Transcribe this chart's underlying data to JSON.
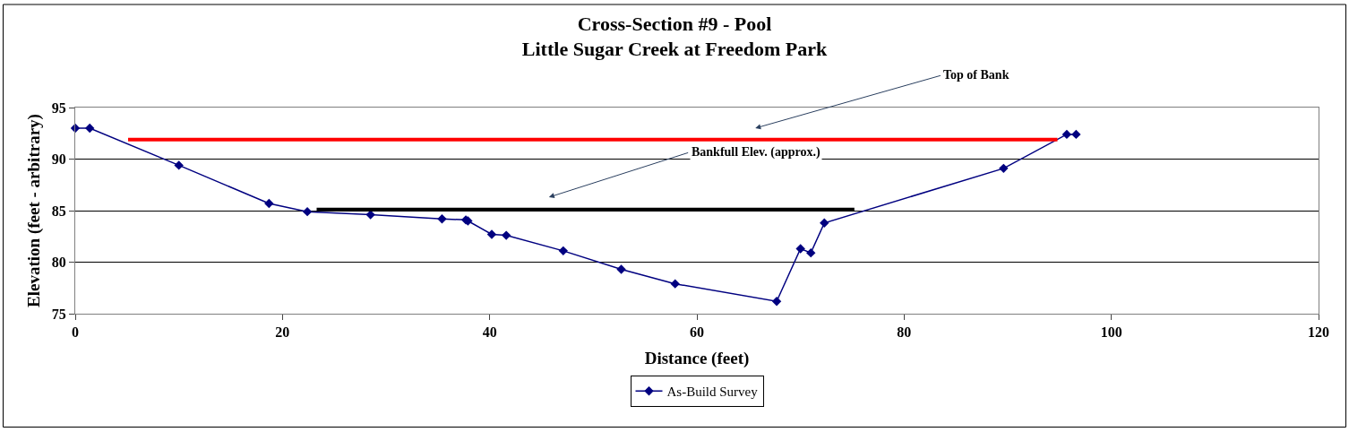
{
  "chart_data": {
    "type": "line",
    "title": "Cross-Section #9 - Pool",
    "subtitle": "Little Sugar Creek at Freedom Park",
    "xlabel": "Distance (feet)",
    "ylabel": "Elevation (feet - arbitrary)",
    "xlim": [
      0,
      120
    ],
    "xticks": [
      0,
      20,
      40,
      60,
      80,
      100,
      120
    ],
    "ylim": [
      75,
      95
    ],
    "yticks": [
      75,
      80,
      85,
      90,
      95
    ],
    "grid": "y",
    "legend": "bottom",
    "marker": "diamond",
    "line_style": "solid",
    "series": [
      {
        "name": "As-Build Survey",
        "color": "#000080",
        "x": [
          0,
          1.4,
          10.0,
          18.7,
          22.4,
          28.5,
          35.4,
          37.7,
          37.9,
          40.2,
          41.6,
          47.1,
          52.7,
          57.9,
          67.7,
          70.0,
          71.0,
          72.3,
          89.6,
          95.7,
          96.6
        ],
        "values": [
          93.0,
          93.0,
          89.4,
          85.7,
          84.9,
          84.6,
          84.2,
          84.1,
          84.0,
          82.7,
          82.6,
          81.1,
          79.3,
          77.9,
          76.2,
          81.3,
          80.9,
          83.8,
          89.1,
          92.4,
          92.4
        ]
      },
      {
        "color": "#ff0000",
        "x": [
          5.1,
          94.8
        ],
        "values": [
          91.9,
          91.9
        ],
        "marker": "none"
      },
      {
        "color": "#000000",
        "x": [
          23.3,
          75.2
        ],
        "values": [
          85.1,
          85.1
        ],
        "marker": "none"
      }
    ],
    "annotations": [
      "Top of Bank",
      "Bankfull Elev. (approx.)"
    ]
  }
}
